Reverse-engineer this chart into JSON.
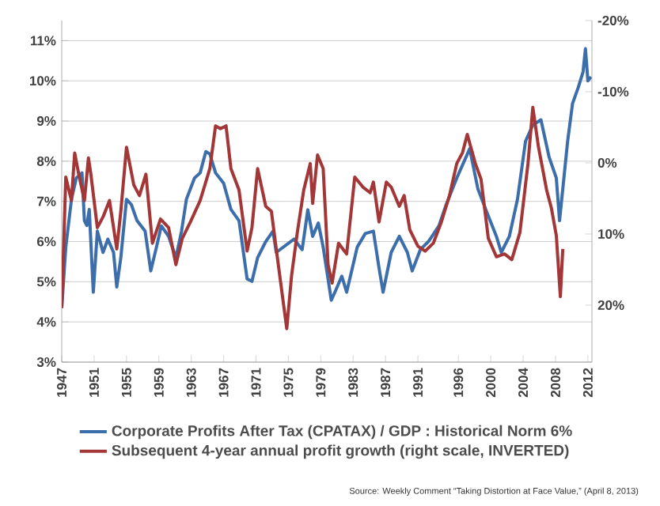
{
  "chart_data": {
    "type": "line",
    "xlabel": null,
    "x": [
      1947.0,
      1947.5,
      1948.2,
      1948.8,
      1949.5,
      1949.8,
      1950.1,
      1950.4,
      1950.9,
      1951.4,
      1952.1,
      1952.7,
      1953.4,
      1953.8,
      1954.3,
      1955.0,
      1955.6,
      1956.3,
      1957.3,
      1958.0,
      1958.7,
      1959.3,
      1960.2,
      1961.1,
      1961.8,
      1962.4,
      1963.4,
      1964.1,
      1964.8,
      1965.3,
      1966.0,
      1967.0,
      1967.9,
      1968.9,
      1969.9,
      1970.5,
      1971.2,
      1972.2,
      1973.1,
      1973.5,
      1975.7,
      1976.7,
      1977.4,
      1978.0,
      1978.7,
      1979.3,
      1980.3,
      1980.9,
      1981.6,
      1982.2,
      1982.9,
      1983.5,
      1984.5,
      1985.5,
      1986.2,
      1986.7,
      1987.7,
      1988.7,
      1989.7,
      1990.3,
      1991.3,
      1992.3,
      1993.6,
      1994.5,
      1995.8,
      1997.4,
      1998.4,
      1999.4,
      2000.7,
      2001.3,
      2002.3,
      2003.3,
      2004.3,
      2005.2,
      2006.2,
      2007.2,
      2008.1,
      2008.5,
      2009.5,
      2010.1,
      2010.8,
      2011.4,
      2011.7,
      2012.0,
      2012.4
    ],
    "series": [
      {
        "name": "Corporate Profits After Tax (CPATAX) / GDP : Historical Norm 6%",
        "color": "#3b6eab",
        "values": [
          4.35,
          5.86,
          7.05,
          7.58,
          7.71,
          6.52,
          6.4,
          6.8,
          4.74,
          6.26,
          5.73,
          6.06,
          5.73,
          4.87,
          5.6,
          7.05,
          6.92,
          6.52,
          6.26,
          5.27,
          5.86,
          6.39,
          6.13,
          5.6,
          6.26,
          7.05,
          7.58,
          7.71,
          8.24,
          8.18,
          7.71,
          7.45,
          6.8,
          6.52,
          5.07,
          5.01,
          5.6,
          6.0,
          6.26,
          5.73,
          6.06,
          5.8,
          6.79,
          6.13,
          6.46,
          5.86,
          4.54,
          4.81,
          5.14,
          4.74,
          5.34,
          5.86,
          6.2,
          6.26,
          5.34,
          4.74,
          5.73,
          6.13,
          5.73,
          5.27,
          5.8,
          6.0,
          6.39,
          6.92,
          7.58,
          8.31,
          7.32,
          6.79,
          6.13,
          5.73,
          6.13,
          7.05,
          8.5,
          8.9,
          9.03,
          8.11,
          7.58,
          6.52,
          8.5,
          9.43,
          9.83,
          10.22,
          10.8,
          10.0,
          10.1
        ]
      },
      {
        "name": "Subsequent 4-year annual profit growth (right scale, INVERTED)",
        "color": "#a33636",
        "axis": "y2",
        "x": [
          1947.0,
          1947.5,
          1948.2,
          1948.6,
          1949.1,
          1949.8,
          1950.3,
          1950.6,
          1951.4,
          1952.1,
          1952.9,
          1953.8,
          1954.3,
          1955.0,
          1955.9,
          1956.6,
          1957.4,
          1958.2,
          1959.2,
          1960.2,
          1961.1,
          1961.9,
          1962.9,
          1964.1,
          1965.3,
          1966.0,
          1966.6,
          1967.3,
          1967.9,
          1968.9,
          1969.9,
          1970.5,
          1971.2,
          1972.2,
          1972.9,
          1973.5,
          1974.8,
          1975.4,
          1976.1,
          1976.9,
          1977.7,
          1978.0,
          1978.6,
          1979.3,
          1979.9,
          1980.4,
          1981.2,
          1982.2,
          1983.2,
          1984.2,
          1985.1,
          1985.5,
          1986.2,
          1987.1,
          1987.7,
          1988.7,
          1989.3,
          1990.0,
          1991.0,
          1991.9,
          1992.9,
          1993.9,
          1994.9,
          1995.8,
          1996.5,
          1997.1,
          1998.1,
          1998.8,
          1999.7,
          2000.7,
          2001.7,
          2002.6,
          2003.6,
          2004.6,
          2005.2,
          2005.9,
          2006.9,
          2007.5,
          2008.1,
          2008.6,
          2008.9
        ],
        "values": [
          20.4,
          2.0,
          5.3,
          -1.4,
          1.6,
          5.3,
          -0.7,
          1.6,
          9.1,
          7.6,
          5.3,
          12.1,
          6.8,
          -2.2,
          3.1,
          4.6,
          1.6,
          11.3,
          7.9,
          9.1,
          14.3,
          10.6,
          8.3,
          5.3,
          0.8,
          -5.2,
          -4.8,
          -5.2,
          0.8,
          3.8,
          12.4,
          9.1,
          0.8,
          6.1,
          6.8,
          12.1,
          23.3,
          15.8,
          9.8,
          3.8,
          0.1,
          5.7,
          -1.1,
          0.8,
          14.3,
          16.9,
          11.3,
          12.8,
          2.0,
          3.4,
          4.2,
          2.7,
          8.3,
          2.7,
          3.4,
          6.1,
          4.6,
          9.4,
          11.7,
          12.4,
          11.3,
          8.3,
          4.6,
          0.1,
          -1.4,
          -4.0,
          0.1,
          2.3,
          10.6,
          13.2,
          12.8,
          13.6,
          9.8,
          0.1,
          -7.8,
          -2.2,
          3.8,
          6.4,
          10.2,
          18.8,
          12.1
        ]
      }
    ],
    "xlim": [
      1947,
      2012.5
    ],
    "xticks": [
      1947,
      1951,
      1955,
      1959,
      1963,
      1967,
      1971,
      1975,
      1979,
      1983,
      1987,
      1991,
      1996,
      2000,
      2004,
      2008,
      2012
    ],
    "ylim": [
      3,
      11.5
    ],
    "yticks": [
      {
        "value": 3,
        "label": "3%"
      },
      {
        "value": 4,
        "label": "4%"
      },
      {
        "value": 5,
        "label": "5%"
      },
      {
        "value": 6,
        "label": "6%"
      },
      {
        "value": 7,
        "label": "7%"
      },
      {
        "value": 8,
        "label": "8%"
      },
      {
        "value": 9,
        "label": "9%"
      },
      {
        "value": 10,
        "label": "10%"
      },
      {
        "value": 11,
        "label": "11%"
      }
    ],
    "y2lim": [
      28,
      -20
    ],
    "y2ticks": [
      {
        "value": -20,
        "label": "-20%"
      },
      {
        "value": -10,
        "label": "-10%"
      },
      {
        "value": 0,
        "label": "0%"
      },
      {
        "value": 10,
        "label": "10%"
      },
      {
        "value": 20,
        "label": "20%"
      }
    ],
    "grid": "y",
    "legend": "bottom",
    "marker": "none",
    "line_style": "solid",
    "annotations": [
      "Source: Weekly Comment “Taking Distortion at Face Value,” (April 8, 2013)"
    ]
  }
}
